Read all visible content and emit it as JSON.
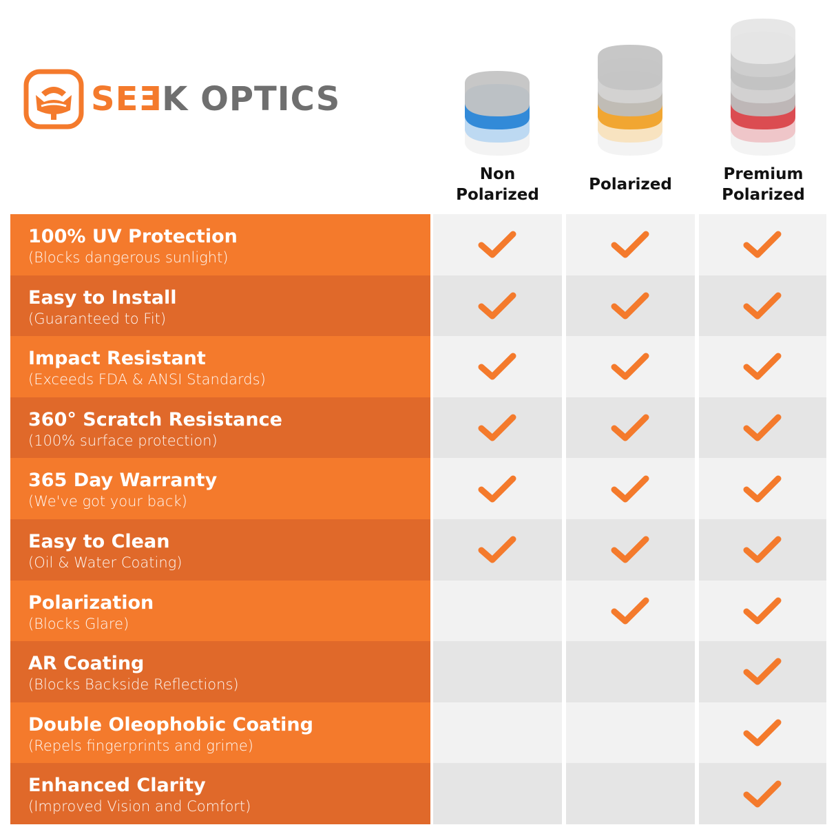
{
  "brand": {
    "name_part1": "SEƎ",
    "name_part2": "K OPTICS",
    "accent": "#f47a2c",
    "gray": "#6f6f6f"
  },
  "colors": {
    "row_orange": "#f47a2c",
    "row_orange_dark": "#e0692a",
    "cell_light": "#f2f2f2",
    "cell_dark": "#e5e5e5",
    "check": "#f47a2c"
  },
  "columns": [
    {
      "label": "Non\nPolarized",
      "lens_icon": "blue-lens-stack",
      "lens_layers": [
        "#eeeeee",
        "#b9d7f1",
        "#2a86d6",
        "#c4c4c4"
      ]
    },
    {
      "label": "Polarized",
      "lens_icon": "yellow-lens-stack",
      "lens_layers": [
        "#eeeeee",
        "#f8e2bd",
        "#f0a22a",
        "#bdbdbd",
        "stripe",
        "#c4c4c4"
      ]
    },
    {
      "label": "Premium\nPolarized",
      "lens_icon": "red-lens-stack",
      "lens_layers": [
        "#eeeeee",
        "#eec3c6",
        "#d9464b",
        "#bdbdbd",
        "stripe",
        "#c2c2c2",
        "#cfcfcf",
        "#e6e6e6"
      ]
    }
  ],
  "features": [
    {
      "title": "100% UV Protection",
      "subtitle": "(Blocks dangerous sunlight)",
      "checks": [
        true,
        true,
        true
      ]
    },
    {
      "title": "Easy to Install",
      "subtitle": "(Guaranteed to Fit)",
      "checks": [
        true,
        true,
        true
      ]
    },
    {
      "title": "Impact Resistant",
      "subtitle": "(Exceeds FDA & ANSI Standards)",
      "checks": [
        true,
        true,
        true
      ]
    },
    {
      "title": "360° Scratch Resistance",
      "subtitle": "(100% surface protection)",
      "checks": [
        true,
        true,
        true
      ]
    },
    {
      "title": "365 Day Warranty",
      "subtitle": "(We've got your back)",
      "checks": [
        true,
        true,
        true
      ]
    },
    {
      "title": "Easy to Clean",
      "subtitle": "(Oil & Water Coating)",
      "checks": [
        true,
        true,
        true
      ]
    },
    {
      "title": "Polarization",
      "subtitle": "(Blocks Glare)",
      "checks": [
        false,
        true,
        true
      ]
    },
    {
      "title": "AR Coating",
      "subtitle": "(Blocks Backside Reflections)",
      "checks": [
        false,
        false,
        true
      ]
    },
    {
      "title": "Double Oleophobic Coating",
      "subtitle": "(Repels fingerprints and grime)",
      "checks": [
        false,
        false,
        true
      ]
    },
    {
      "title": "Enhanced Clarity",
      "subtitle": "(Improved Vision and Comfort)",
      "checks": [
        false,
        false,
        true
      ]
    }
  ]
}
